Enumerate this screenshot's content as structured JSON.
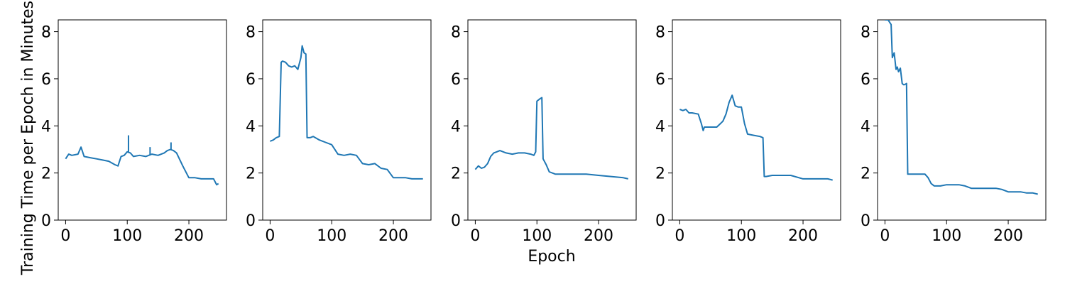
{
  "chart_data": {
    "type": "line",
    "ylabel": "Training Time per Epoch in Minutes",
    "xlabel": "Epoch",
    "color": "#1f77b4",
    "xlim": [
      -12,
      261
    ],
    "ylim": [
      0,
      8.5
    ],
    "xticks": [
      0,
      100,
      200
    ],
    "yticks": [
      0,
      2,
      4,
      6,
      8
    ],
    "grid": false,
    "panels": [
      {
        "x": [
          0,
          5,
          10,
          20,
          25,
          30,
          40,
          50,
          60,
          70,
          80,
          85,
          90,
          95,
          100,
          105,
          110,
          120,
          130,
          140,
          150,
          160,
          165,
          170,
          175,
          180,
          190,
          200,
          210,
          220,
          230,
          240,
          245,
          248
        ],
        "y": [
          2.6,
          2.8,
          2.75,
          2.8,
          3.1,
          2.7,
          2.65,
          2.6,
          2.55,
          2.5,
          2.35,
          2.3,
          2.7,
          2.75,
          2.9,
          2.85,
          2.7,
          2.75,
          2.7,
          2.8,
          2.75,
          2.85,
          2.95,
          3.0,
          2.95,
          2.85,
          2.3,
          1.8,
          1.8,
          1.75,
          1.75,
          1.75,
          1.5,
          1.55
        ],
        "x_spikes": [
          102,
          137,
          171
        ],
        "y_spikes": [
          3.6,
          3.1,
          3.3
        ]
      },
      {
        "x": [
          0,
          5,
          10,
          15,
          18,
          20,
          25,
          30,
          35,
          40,
          45,
          50,
          52,
          55,
          58,
          60,
          65,
          70,
          80,
          90,
          100,
          110,
          120,
          130,
          140,
          150,
          160,
          170,
          180,
          190,
          200,
          210,
          220,
          230,
          240,
          248
        ],
        "y": [
          3.35,
          3.4,
          3.5,
          3.55,
          6.7,
          6.75,
          6.7,
          6.55,
          6.5,
          6.55,
          6.4,
          6.9,
          7.4,
          7.1,
          7.05,
          3.5,
          3.5,
          3.55,
          3.4,
          3.3,
          3.2,
          2.8,
          2.75,
          2.8,
          2.75,
          2.4,
          2.35,
          2.4,
          2.2,
          2.15,
          1.8,
          1.8,
          1.8,
          1.75,
          1.75,
          1.75
        ]
      },
      {
        "x": [
          0,
          5,
          10,
          15,
          20,
          25,
          30,
          35,
          40,
          50,
          60,
          70,
          80,
          90,
          95,
          98,
          100,
          105,
          108,
          110,
          115,
          120,
          130,
          140,
          160,
          180,
          200,
          220,
          240,
          248
        ],
        "y": [
          2.15,
          2.3,
          2.2,
          2.25,
          2.4,
          2.7,
          2.85,
          2.9,
          2.95,
          2.85,
          2.8,
          2.85,
          2.85,
          2.8,
          2.75,
          2.9,
          5.05,
          5.15,
          5.2,
          2.6,
          2.35,
          2.05,
          1.95,
          1.95,
          1.95,
          1.95,
          1.9,
          1.85,
          1.8,
          1.75
        ]
      },
      {
        "x": [
          0,
          5,
          10,
          15,
          20,
          30,
          35,
          38,
          40,
          45,
          50,
          60,
          70,
          75,
          80,
          85,
          90,
          95,
          100,
          105,
          110,
          120,
          130,
          135,
          137,
          140,
          150,
          160,
          180,
          200,
          220,
          240,
          248
        ],
        "y": [
          4.7,
          4.65,
          4.7,
          4.55,
          4.55,
          4.5,
          4.1,
          3.8,
          3.95,
          3.95,
          3.95,
          3.95,
          4.2,
          4.5,
          5.0,
          5.3,
          4.85,
          4.8,
          4.8,
          4.1,
          3.65,
          3.6,
          3.55,
          3.5,
          1.85,
          1.85,
          1.9,
          1.9,
          1.9,
          1.75,
          1.75,
          1.75,
          1.7
        ]
      },
      {
        "x": [
          0,
          5,
          10,
          12,
          15,
          18,
          20,
          22,
          25,
          28,
          30,
          32,
          35,
          37,
          40,
          50,
          60,
          65,
          70,
          75,
          80,
          90,
          100,
          110,
          120,
          130,
          140,
          150,
          160,
          170,
          180,
          190,
          200,
          210,
          220,
          230,
          240,
          248
        ],
        "y": [
          8.5,
          8.5,
          8.3,
          6.9,
          7.1,
          6.4,
          6.5,
          6.3,
          6.45,
          5.8,
          5.75,
          5.75,
          5.8,
          1.95,
          1.95,
          1.95,
          1.95,
          1.95,
          1.8,
          1.55,
          1.45,
          1.45,
          1.5,
          1.5,
          1.5,
          1.45,
          1.35,
          1.35,
          1.35,
          1.35,
          1.35,
          1.3,
          1.2,
          1.2,
          1.2,
          1.15,
          1.15,
          1.1
        ]
      }
    ]
  }
}
